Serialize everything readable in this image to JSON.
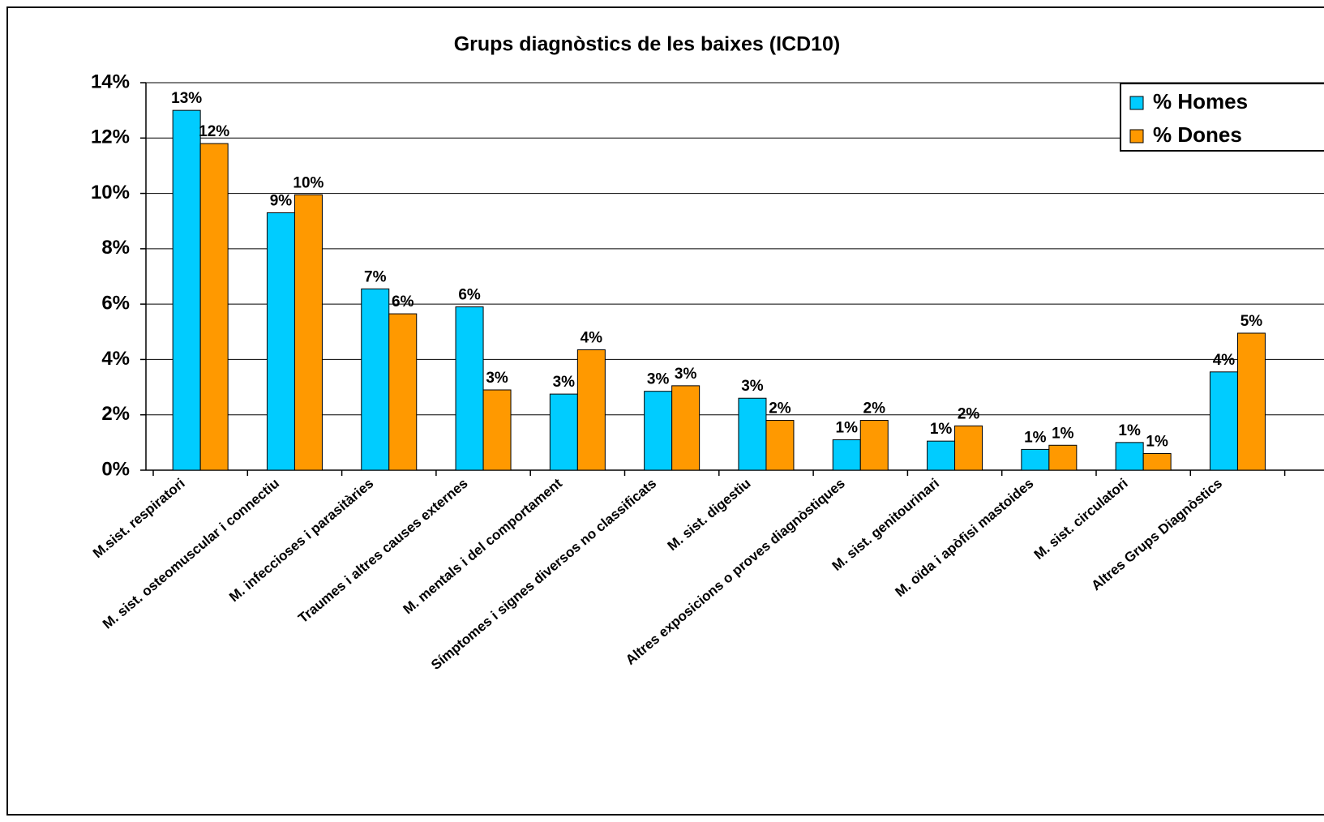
{
  "chart_data": {
    "type": "bar",
    "title": "Grups diagnòstics de les baixes (ICD10)",
    "categories": [
      "M.sist. respiratori",
      "M. sist. osteomuscular i connectiu",
      "M. infeccioses i parasitàries",
      "Traumes i altres causes externes",
      "M. mentals i del comportament",
      "Símptomes i signes diversos no classificats",
      "M. sist. digestiu",
      "Altres exposicions o proves diagnòstiques",
      "M. sist. genitourinari",
      "M. oïda i apòfisi mastoides",
      "M. sist. circulatori",
      "Altres Grups Diagnòstics"
    ],
    "series": [
      {
        "name": "% Homes",
        "color": "#00ccff",
        "values": [
          13.0,
          9.3,
          6.55,
          5.9,
          2.75,
          2.85,
          2.6,
          1.1,
          1.05,
          0.75,
          1.0,
          3.55
        ],
        "value_labels": [
          "13%",
          "9%",
          "7%",
          "6%",
          "3%",
          "3%",
          "3%",
          "1%",
          "1%",
          "1%",
          "1%",
          "4%"
        ]
      },
      {
        "name": "% Dones",
        "color": "#ff9900",
        "values": [
          11.8,
          9.95,
          5.65,
          2.9,
          4.35,
          3.05,
          1.8,
          1.8,
          1.6,
          0.9,
          0.6,
          4.95
        ],
        "value_labels": [
          "12%",
          "10%",
          "6%",
          "3%",
          "4%",
          "3%",
          "2%",
          "2%",
          "2%",
          "1%",
          "1%",
          "5%"
        ]
      }
    ],
    "ylim": [
      0,
      14
    ],
    "yticks": [
      {
        "value": 0,
        "label": "0%"
      },
      {
        "value": 2,
        "label": "2%"
      },
      {
        "value": 4,
        "label": "4%"
      },
      {
        "value": 6,
        "label": "6%"
      },
      {
        "value": 8,
        "label": "8%"
      },
      {
        "value": 10,
        "label": "10%"
      },
      {
        "value": 12,
        "label": "12%"
      },
      {
        "value": 14,
        "label": "14%"
      }
    ],
    "grid": true,
    "legend": "top-right"
  }
}
